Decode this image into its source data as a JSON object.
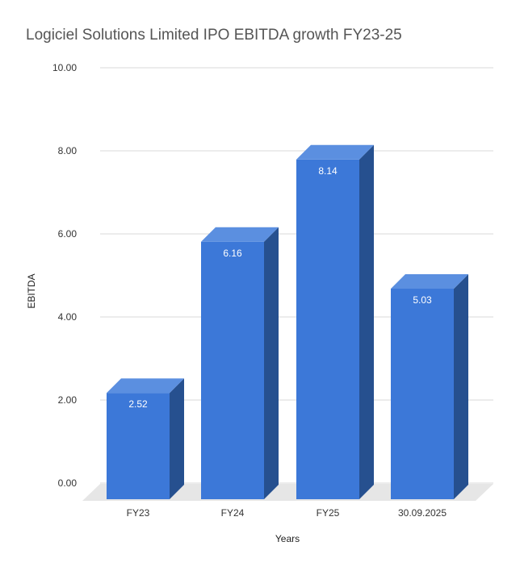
{
  "chart_data": {
    "type": "bar",
    "title": "Logiciel Solutions Limited IPO EBITDA growth FY23-25",
    "xlabel": "Years",
    "ylabel": "EBITDA",
    "categories": [
      "FY23",
      "FY24",
      "FY25",
      "30.09.2025"
    ],
    "values": [
      2.52,
      6.16,
      8.14,
      5.03
    ],
    "value_labels": [
      "2.52",
      "6.16",
      "8.14",
      "5.03"
    ],
    "y_ticks": [
      0,
      2,
      4,
      6,
      8,
      10
    ],
    "y_tick_labels": [
      "0.00",
      "2.00",
      "4.00",
      "6.00",
      "8.00",
      "10.00"
    ],
    "ylim": [
      0,
      10
    ],
    "grid": true,
    "legend": "none",
    "style": "3d-bar",
    "colors": {
      "front": "#3c78d8",
      "top": "#5b8fe0",
      "side": "#26508f",
      "floor": "#e6e6e6",
      "grid": "#d9d9d9"
    }
  }
}
